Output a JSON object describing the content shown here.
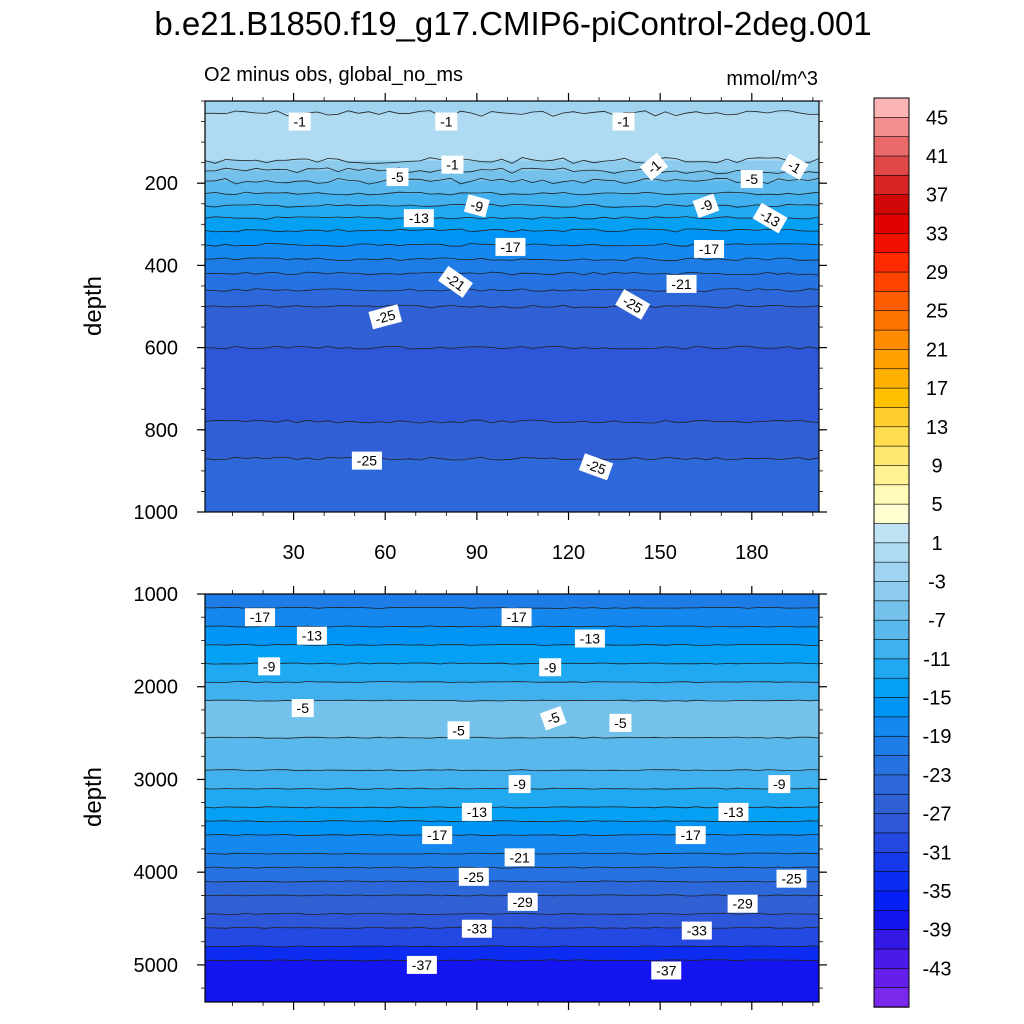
{
  "title": "b.e21.B1850.f19_g17.CMIP6-piControl-2deg.001",
  "subtitle_left": "O2 minus obs, global_no_ms",
  "units": "mmol/m^3",
  "chart_data": [
    {
      "type": "heatmap",
      "panel": "upper",
      "title": "O2 minus obs, global_no_ms",
      "units": "mmol/m^3",
      "xlabel": "",
      "ylabel": "depth",
      "xlim": [
        1,
        202
      ],
      "ylim": [
        1000,
        0
      ],
      "xticks": [
        30,
        60,
        90,
        120,
        150,
        180
      ],
      "yticks": [
        200,
        400,
        600,
        800,
        1000
      ],
      "bands": [
        {
          "top": 0,
          "bottom": 30,
          "value": -2
        },
        {
          "top": 30,
          "bottom": 145,
          "value": 1
        },
        {
          "top": 145,
          "bottom": 170,
          "value": -3
        },
        {
          "top": 170,
          "bottom": 195,
          "value": -5
        },
        {
          "top": 195,
          "bottom": 225,
          "value": -7
        },
        {
          "top": 225,
          "bottom": 255,
          "value": -9
        },
        {
          "top": 255,
          "bottom": 285,
          "value": -11
        },
        {
          "top": 285,
          "bottom": 315,
          "value": -13
        },
        {
          "top": 315,
          "bottom": 350,
          "value": -15
        },
        {
          "top": 350,
          "bottom": 385,
          "value": -17
        },
        {
          "top": 385,
          "bottom": 420,
          "value": -19
        },
        {
          "top": 420,
          "bottom": 460,
          "value": -21
        },
        {
          "top": 460,
          "bottom": 500,
          "value": -23
        },
        {
          "top": 500,
          "bottom": 600,
          "value": -25
        },
        {
          "top": 600,
          "bottom": 780,
          "value": -27
        },
        {
          "top": 780,
          "bottom": 870,
          "value": -25
        },
        {
          "top": 870,
          "bottom": 1000,
          "value": -23
        }
      ],
      "contour_labels": [
        {
          "x": 32,
          "depth": 50,
          "text": "-1",
          "angle": 0
        },
        {
          "x": 80,
          "depth": 50,
          "text": "-1",
          "angle": 0
        },
        {
          "x": 138,
          "depth": 50,
          "text": "-1",
          "angle": 0
        },
        {
          "x": 82,
          "depth": 155,
          "text": "-1",
          "angle": 0
        },
        {
          "x": 148,
          "depth": 160,
          "text": "-1",
          "angle": -40
        },
        {
          "x": 194,
          "depth": 160,
          "text": "-1",
          "angle": 30
        },
        {
          "x": 64,
          "depth": 185,
          "text": "-5",
          "angle": 0
        },
        {
          "x": 180,
          "depth": 190,
          "text": "-5",
          "angle": 0
        },
        {
          "x": 90,
          "depth": 255,
          "text": "-9",
          "angle": 15
        },
        {
          "x": 165,
          "depth": 255,
          "text": "-9",
          "angle": -20
        },
        {
          "x": 71,
          "depth": 285,
          "text": "-13",
          "angle": 0
        },
        {
          "x": 186,
          "depth": 285,
          "text": "-13",
          "angle": 30
        },
        {
          "x": 101,
          "depth": 355,
          "text": "-17",
          "angle": 0
        },
        {
          "x": 166,
          "depth": 360,
          "text": "-17",
          "angle": 0
        },
        {
          "x": 83,
          "depth": 440,
          "text": "-21",
          "angle": 35
        },
        {
          "x": 157,
          "depth": 445,
          "text": "-21",
          "angle": 0
        },
        {
          "x": 60,
          "depth": 525,
          "text": "-25",
          "angle": -15
        },
        {
          "x": 141,
          "depth": 495,
          "text": "-25",
          "angle": 30
        },
        {
          "x": 54,
          "depth": 875,
          "text": "-25",
          "angle": 0
        },
        {
          "x": 129,
          "depth": 890,
          "text": "-25",
          "angle": 20
        }
      ]
    },
    {
      "type": "heatmap",
      "panel": "lower",
      "xlabel": "",
      "ylabel": "depth",
      "xlim": [
        1,
        202
      ],
      "ylim": [
        5400,
        1000
      ],
      "yticks": [
        1000,
        2000,
        3000,
        4000,
        5000
      ],
      "bands": [
        {
          "top": 1000,
          "bottom": 1150,
          "value": -19
        },
        {
          "top": 1150,
          "bottom": 1350,
          "value": -17
        },
        {
          "top": 1350,
          "bottom": 1550,
          "value": -15
        },
        {
          "top": 1550,
          "bottom": 1750,
          "value": -13
        },
        {
          "top": 1750,
          "bottom": 1950,
          "value": -11
        },
        {
          "top": 1950,
          "bottom": 2150,
          "value": -9
        },
        {
          "top": 2150,
          "bottom": 2550,
          "value": -5
        },
        {
          "top": 2550,
          "bottom": 2900,
          "value": -7
        },
        {
          "top": 2900,
          "bottom": 3100,
          "value": -9
        },
        {
          "top": 3100,
          "bottom": 3300,
          "value": -11
        },
        {
          "top": 3300,
          "bottom": 3450,
          "value": -13
        },
        {
          "top": 3450,
          "bottom": 3600,
          "value": -15
        },
        {
          "top": 3600,
          "bottom": 3800,
          "value": -17
        },
        {
          "top": 3800,
          "bottom": 3950,
          "value": -19
        },
        {
          "top": 3950,
          "bottom": 4100,
          "value": -21
        },
        {
          "top": 4100,
          "bottom": 4250,
          "value": -23
        },
        {
          "top": 4250,
          "bottom": 4450,
          "value": -25
        },
        {
          "top": 4450,
          "bottom": 4600,
          "value": -27
        },
        {
          "top": 4600,
          "bottom": 4800,
          "value": -29
        },
        {
          "top": 4800,
          "bottom": 4950,
          "value": -33
        },
        {
          "top": 4950,
          "bottom": 5400,
          "value": -37
        }
      ],
      "contour_labels": [
        {
          "x": 19,
          "depth": 1250,
          "text": "-17",
          "angle": 0
        },
        {
          "x": 103,
          "depth": 1250,
          "text": "-17",
          "angle": 0
        },
        {
          "x": 36,
          "depth": 1450,
          "text": "-13",
          "angle": 0
        },
        {
          "x": 127,
          "depth": 1480,
          "text": "-13",
          "angle": 0
        },
        {
          "x": 22,
          "depth": 1780,
          "text": "-9",
          "angle": 0
        },
        {
          "x": 114,
          "depth": 1790,
          "text": "-9",
          "angle": 0
        },
        {
          "x": 33,
          "depth": 2230,
          "text": "-5",
          "angle": 0
        },
        {
          "x": 84,
          "depth": 2470,
          "text": "-5",
          "angle": 0
        },
        {
          "x": 115,
          "depth": 2340,
          "text": "-5",
          "angle": -20
        },
        {
          "x": 137,
          "depth": 2390,
          "text": "-5",
          "angle": 0
        },
        {
          "x": 104,
          "depth": 3050,
          "text": "-9",
          "angle": 0
        },
        {
          "x": 189,
          "depth": 3050,
          "text": "-9",
          "angle": 0
        },
        {
          "x": 90,
          "depth": 3350,
          "text": "-13",
          "angle": 0
        },
        {
          "x": 174,
          "depth": 3350,
          "text": "-13",
          "angle": 0
        },
        {
          "x": 77,
          "depth": 3600,
          "text": "-17",
          "angle": 0
        },
        {
          "x": 160,
          "depth": 3600,
          "text": "-17",
          "angle": 0
        },
        {
          "x": 104,
          "depth": 3840,
          "text": "-21",
          "angle": 0
        },
        {
          "x": 89,
          "depth": 4050,
          "text": "-25",
          "angle": 0
        },
        {
          "x": 193,
          "depth": 4070,
          "text": "-25",
          "angle": 0
        },
        {
          "x": 105,
          "depth": 4320,
          "text": "-29",
          "angle": 0
        },
        {
          "x": 177,
          "depth": 4340,
          "text": "-29",
          "angle": 0
        },
        {
          "x": 90,
          "depth": 4610,
          "text": "-33",
          "angle": 0
        },
        {
          "x": 162,
          "depth": 4630,
          "text": "-33",
          "angle": 0
        },
        {
          "x": 72,
          "depth": 5000,
          "text": "-37",
          "angle": 0
        },
        {
          "x": 152,
          "depth": 5060,
          "text": "-37",
          "angle": 0
        }
      ]
    },
    {
      "type": "colorbar",
      "levels": [
        47,
        45,
        43,
        41,
        39,
        37,
        35,
        33,
        31,
        29,
        27,
        25,
        23,
        21,
        19,
        17,
        15,
        13,
        11,
        9,
        7,
        5,
        3,
        1,
        -1,
        -3,
        -5,
        -7,
        -9,
        -11,
        -13,
        -15,
        -17,
        -19,
        -21,
        -23,
        -25,
        -27,
        -29,
        -31,
        -33,
        -35,
        -37,
        -39,
        -41,
        -43,
        -45
      ],
      "colors": [
        "#fcb4b4",
        "#f29090",
        "#ea6a6a",
        "#e04848",
        "#d82424",
        "#d00808",
        "#e00000",
        "#f01000",
        "#ff2a00",
        "#ff4400",
        "#ff5e00",
        "#ff7400",
        "#ff8c00",
        "#ffa000",
        "#ffb000",
        "#ffc000",
        "#ffcf30",
        "#ffdc50",
        "#ffe870",
        "#fff294",
        "#fffab8",
        "#fffed0",
        "#bfe3f4",
        "#afdbf2",
        "#9fd3ef",
        "#8ccbed",
        "#74c2ec",
        "#5ab9ec",
        "#40b0ee",
        "#20a8f0",
        "#04a0f4",
        "#0094f6",
        "#1488ee",
        "#1e7ce6",
        "#2672e0",
        "#2c68da",
        "#3060d4",
        "#2e56d8",
        "#2448e2",
        "#163aea",
        "#0c2cf2",
        "#0420f6",
        "#1414f0",
        "#3418e6",
        "#4a1ae8",
        "#6420ea",
        "#7a28ec"
      ],
      "tick_labels": [
        "45",
        "41",
        "37",
        "33",
        "29",
        "25",
        "21",
        "17",
        "13",
        "9",
        "5",
        "1",
        "-3",
        "-7",
        "-11",
        "-15",
        "-19",
        "-23",
        "-27",
        "-31",
        "-35",
        "-39",
        "-43"
      ]
    }
  ]
}
